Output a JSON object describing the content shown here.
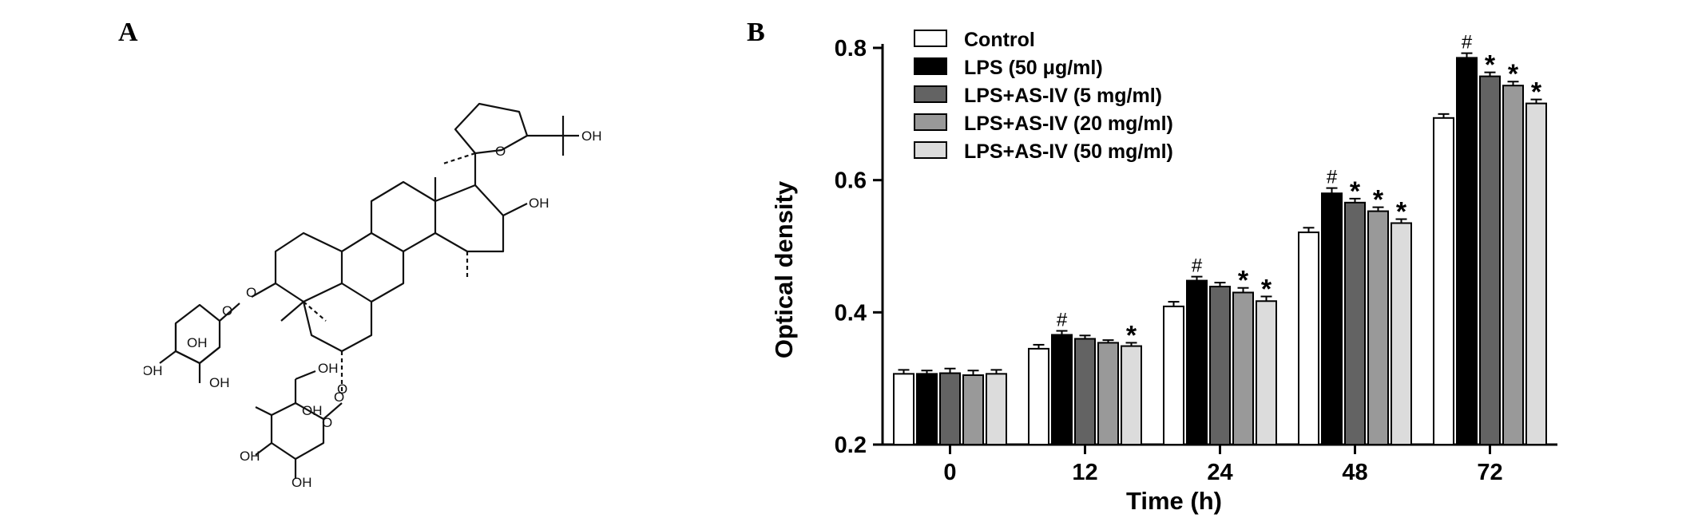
{
  "panels": {
    "a_label": "A",
    "b_label": "B"
  },
  "structure": {
    "atom_labels": [
      "O",
      "OH",
      "OH",
      "OH",
      "OH",
      "OH",
      "O",
      "OH",
      "OH",
      "O",
      "OH",
      "O",
      "O",
      "OH",
      "O"
    ]
  },
  "chart_data": {
    "type": "bar",
    "xlabel": "Time (h)",
    "ylabel": "Optical density",
    "categories": [
      "0",
      "12",
      "24",
      "48",
      "72"
    ],
    "ylim": [
      0.2,
      0.8
    ],
    "yticks": [
      "0.2",
      "0.4",
      "0.6",
      "0.8"
    ],
    "legend_position": "top-left",
    "series": [
      {
        "name": "Control",
        "color": "#ffffff",
        "values": [
          0.307,
          0.345,
          0.409,
          0.521,
          0.694
        ],
        "errors": [
          0.006,
          0.006,
          0.007,
          0.007,
          0.006
        ],
        "marks": [
          "",
          "",
          "",
          "",
          ""
        ]
      },
      {
        "name": "LPS (50 μg/ml)",
        "color": "#000000",
        "values": [
          0.307,
          0.366,
          0.448,
          0.58,
          0.785
        ],
        "errors": [
          0.005,
          0.006,
          0.006,
          0.008,
          0.007
        ],
        "marks": [
          "",
          "#",
          "#",
          "#",
          "#"
        ]
      },
      {
        "name": "LPS+AS-IV (5 mg/ml)",
        "color": "#636363",
        "values": [
          0.308,
          0.36,
          0.439,
          0.566,
          0.757
        ],
        "errors": [
          0.007,
          0.005,
          0.006,
          0.006,
          0.006
        ],
        "marks": [
          "",
          "",
          "",
          "*",
          "*"
        ]
      },
      {
        "name": "LPS+AS-IV (20 mg/ml)",
        "color": "#999999",
        "values": [
          0.305,
          0.354,
          0.43,
          0.553,
          0.743
        ],
        "errors": [
          0.007,
          0.004,
          0.007,
          0.006,
          0.006
        ],
        "marks": [
          "",
          "",
          "*",
          "*",
          "*"
        ]
      },
      {
        "name": "LPS+AS-IV (50 mg/ml)",
        "color": "#dcdcdc",
        "values": [
          0.307,
          0.349,
          0.417,
          0.535,
          0.716
        ],
        "errors": [
          0.006,
          0.005,
          0.007,
          0.006,
          0.006
        ],
        "marks": [
          "",
          "*",
          "*",
          "*",
          "*"
        ]
      }
    ]
  }
}
